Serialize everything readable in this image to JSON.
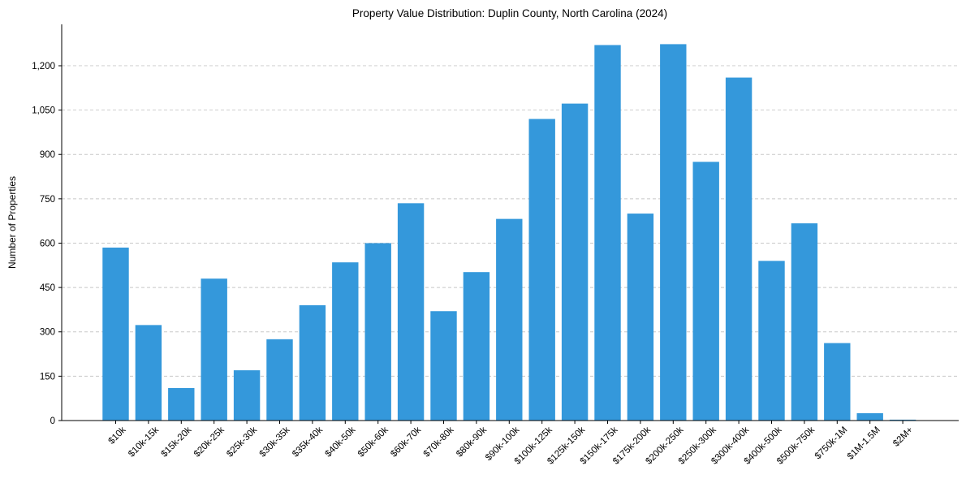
{
  "chart_data": {
    "type": "bar",
    "title": "Property Value Distribution: Duplin County, North Carolina (2024)",
    "xlabel": "",
    "ylabel": "Number of Properties",
    "categories": [
      "$10k",
      "$10k-15k",
      "$15k-20k",
      "$20k-25k",
      "$25k-30k",
      "$30k-35k",
      "$35k-40k",
      "$40k-50k",
      "$50k-60k",
      "$60k-70k",
      "$70k-80k",
      "$80k-90k",
      "$90k-100k",
      "$100k-125k",
      "$125k-150k",
      "$150k-175k",
      "$175k-200k",
      "$200k-250k",
      "$250k-300k",
      "$300k-400k",
      "$400k-500k",
      "$500k-750k",
      "$750k-1M",
      "$1M-1.5M",
      "$2M+"
    ],
    "values": [
      585,
      323,
      110,
      480,
      170,
      275,
      390,
      535,
      600,
      735,
      370,
      502,
      682,
      1020,
      1072,
      1270,
      700,
      1273,
      875,
      1160,
      540,
      667,
      262,
      25,
      3
    ],
    "ylim": [
      0,
      1340
    ],
    "yticks": [
      0,
      150,
      300,
      450,
      600,
      750,
      900,
      1050,
      1200
    ],
    "ytick_labels": [
      "0",
      "150",
      "300",
      "450",
      "600",
      "750",
      "900",
      "1,050",
      "1,200"
    ],
    "grid": true,
    "bar_color": "#3498db"
  }
}
